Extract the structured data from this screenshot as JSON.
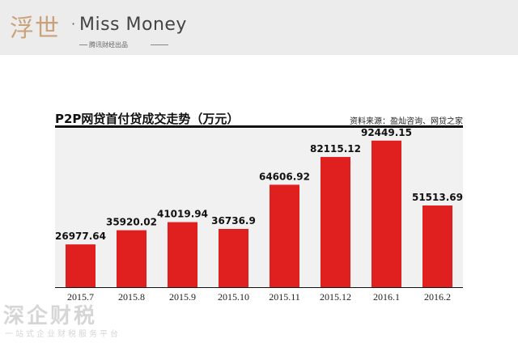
{
  "header": {
    "brand_cn": "浮世",
    "brand_dot": "·",
    "brand_en": "Miss Money",
    "brand_sub": "腾讯财经出品"
  },
  "chart_data": {
    "type": "bar",
    "title": "P2P网贷首付贷成交走势（万元）",
    "source": "资料来源：盈灿咨询、网贷之家",
    "categories": [
      "2015.7",
      "2015.8",
      "2015.9",
      "2015.10",
      "2015.11",
      "2015.12",
      "2016.1",
      "2016.2"
    ],
    "values": [
      26977.64,
      35920.02,
      41019.94,
      36736.9,
      64606.92,
      82115.12,
      92449.15,
      51513.69
    ],
    "value_labels": [
      "26977.64",
      "35920.02",
      "41019.94",
      "36736.9",
      "64606.92",
      "82115.12",
      "92449.15",
      "51513.69"
    ],
    "bar_color": "#e0201f",
    "plot_background": "#f1f1f1",
    "grid": false,
    "ylim": [
      0,
      100000
    ]
  },
  "watermark": {
    "text": "深企财税",
    "subtext": "一站式企业财税服务平台"
  }
}
